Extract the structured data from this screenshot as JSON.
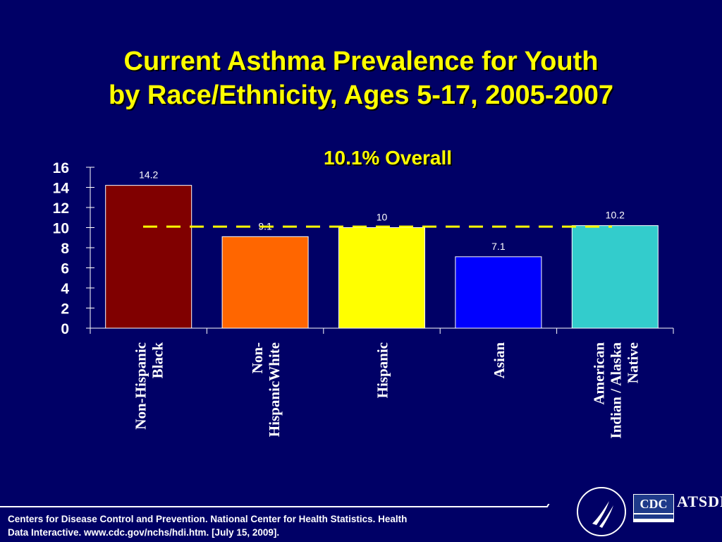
{
  "slide": {
    "title_line1": "Current Asthma Prevalence for Youth",
    "title_line2": "by Race/Ethnicity, Ages 5-17, 2005-2007",
    "overall_label": "10.1%  Overall",
    "footer_line1": "Centers for Disease Control and Prevention. National Center for Health Statistics. Health",
    "footer_line2": "Data Interactive. www.cdc.gov/nchs/hdi.htm. [July 15, 2009].",
    "logos": {
      "cdc": "CDC",
      "atsdr": "ATSDR"
    }
  },
  "chart_data": {
    "type": "bar",
    "categories": [
      [
        "Non-Hispanic",
        "Black"
      ],
      [
        "Non-",
        "HispanicWhite"
      ],
      [
        "Hispanic"
      ],
      [
        "Asian"
      ],
      [
        "American",
        "Indian / Alaska",
        "Native"
      ]
    ],
    "values": [
      14.2,
      9.1,
      10,
      7.1,
      10.2
    ],
    "value_labels": [
      "14.2",
      "9.1",
      "10",
      "7.1",
      "10.2"
    ],
    "colors": [
      "#800000",
      "#ff6600",
      "#ffff00",
      "#0000ff",
      "#33cccc"
    ],
    "reference_line": {
      "value": 10.1,
      "color": "#ffff00",
      "style": "dashed"
    },
    "ylim": [
      0,
      16
    ],
    "yticks": [
      "0",
      "2",
      "4",
      "6",
      "8",
      "10",
      "12",
      "14",
      "16"
    ],
    "grid": false
  }
}
